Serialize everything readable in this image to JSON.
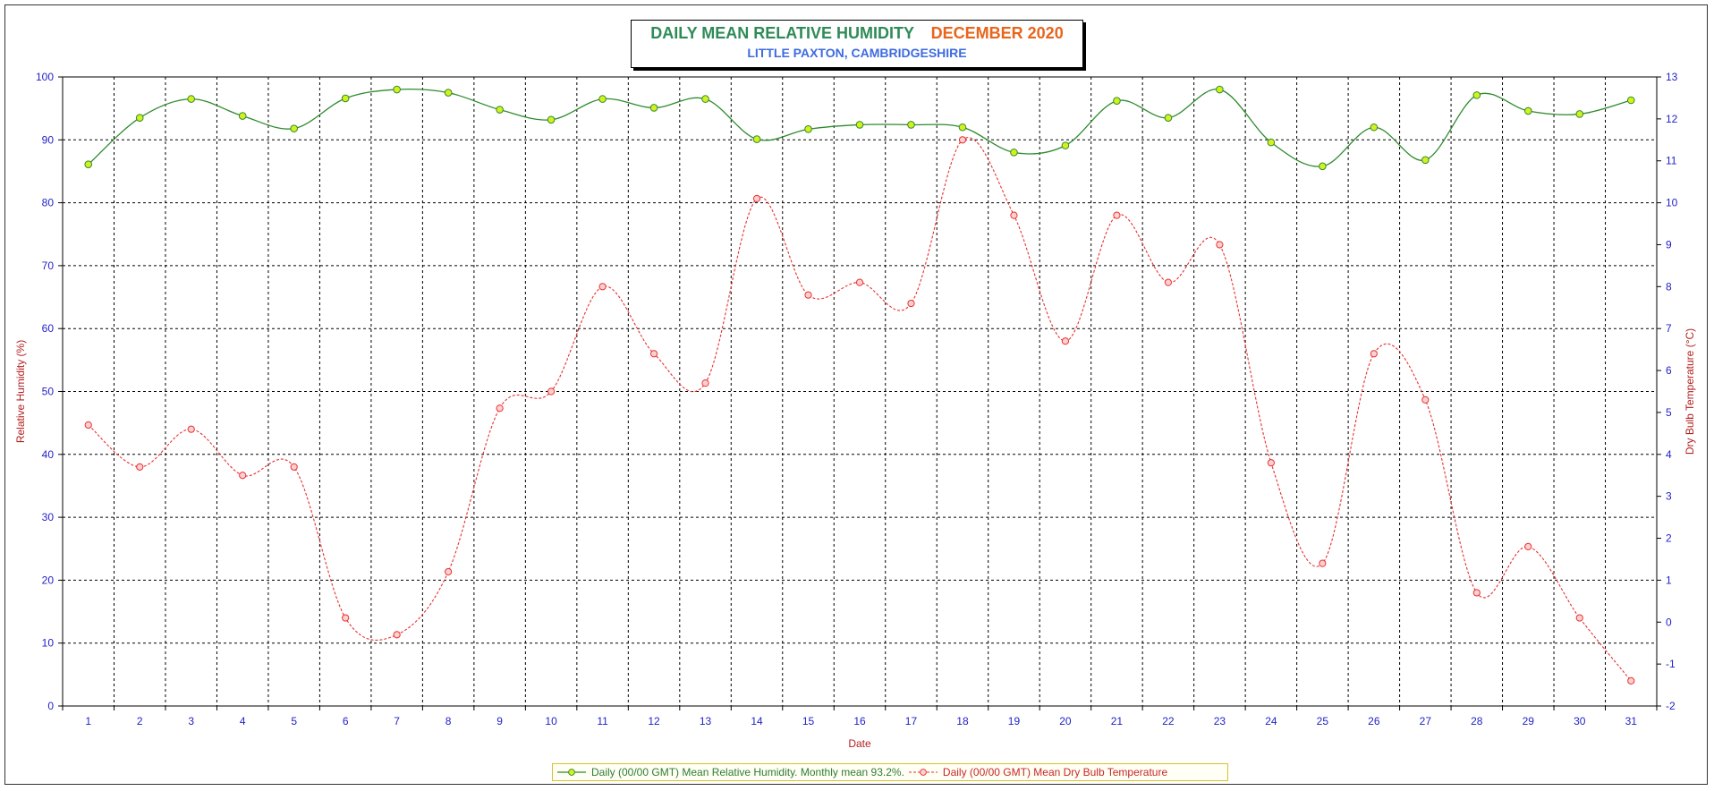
{
  "header": {
    "title": "DAILY MEAN RELATIVE HUMIDITY",
    "period": "DECEMBER 2020",
    "subtitle": "LITTLE PAXTON, CAMBRIDGESHIRE"
  },
  "colors": {
    "rh_line": "#2e8b2e",
    "rh_marker_fill": "#d4f01e",
    "temp_line": "#e83030",
    "temp_marker_fill": "#ffd0d0",
    "axis_tick_text": "#1f1fc8",
    "axis_label_text": "#b32020",
    "title_main": "#2e8b57",
    "title_period": "#e8651c"
  },
  "chart_data": {
    "type": "line",
    "title": "DAILY MEAN RELATIVE HUMIDITY DECEMBER 2020",
    "subtitle": "LITTLE PAXTON, CAMBRIDGESHIRE",
    "xlabel": "Date",
    "ylabel": "Relative Humidity (%)",
    "y2label": "Dry Bulb Temperature (°C)",
    "ylim": [
      0,
      100
    ],
    "y2lim": [
      -2,
      13
    ],
    "y_ticks": [
      "0",
      "10",
      "20",
      "30",
      "40",
      "50",
      "60",
      "70",
      "80",
      "90",
      "100"
    ],
    "y2_ticks": [
      "-2",
      "-1",
      "0",
      "1",
      "2",
      "3",
      "4",
      "5",
      "6",
      "7",
      "8",
      "9",
      "10",
      "11",
      "12",
      "13"
    ],
    "x": [
      "1",
      "2",
      "3",
      "4",
      "5",
      "6",
      "7",
      "8",
      "9",
      "10",
      "11",
      "12",
      "13",
      "14",
      "15",
      "16",
      "17",
      "18",
      "19",
      "20",
      "21",
      "22",
      "23",
      "24",
      "25",
      "26",
      "27",
      "28",
      "29",
      "30",
      "31"
    ],
    "grid": true,
    "legend_position": "bottom",
    "series": [
      {
        "name": "Daily (00/00 GMT) Mean Relative Humidity. Monthly mean 93.2%.",
        "axis": "left",
        "style": "solid",
        "values": [
          86.1,
          93.5,
          96.5,
          93.8,
          91.8,
          96.6,
          98.0,
          97.5,
          94.8,
          93.2,
          96.5,
          95.1,
          96.5,
          90.1,
          91.7,
          92.4,
          92.4,
          92.0,
          88.0,
          89.1,
          96.2,
          93.5,
          98.0,
          89.6,
          85.8,
          92.0,
          86.8,
          97.1,
          94.6,
          94.1,
          96.3
        ]
      },
      {
        "name": "Daily (00/00 GMT) Mean Dry Bulb Temperature",
        "axis": "right",
        "style": "dashed",
        "values": [
          4.7,
          3.7,
          4.6,
          3.5,
          3.7,
          0.1,
          -0.3,
          1.2,
          5.1,
          5.5,
          8.0,
          6.4,
          5.7,
          10.1,
          7.8,
          8.1,
          7.6,
          11.5,
          9.7,
          6.7,
          9.7,
          8.1,
          9.0,
          3.8,
          1.4,
          6.4,
          5.3,
          0.7,
          1.8,
          0.1,
          -1.4
        ]
      }
    ]
  }
}
